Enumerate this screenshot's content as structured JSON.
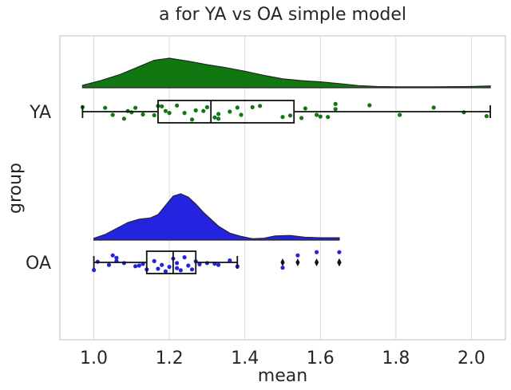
{
  "chart_data": {
    "type": "raincloud",
    "title": "a for YA vs OA simple model",
    "xlabel": "mean",
    "ylabel": "group",
    "xlim": [
      0.91,
      2.09
    ],
    "xticks": [
      1.0,
      1.2,
      1.4,
      1.6,
      1.8,
      2.0
    ],
    "xtick_labels": [
      "1.0",
      "1.2",
      "1.4",
      "1.6",
      "1.8",
      "2.0"
    ],
    "grid": "vertical",
    "groups": [
      {
        "name": "YA",
        "color": "#117711",
        "box": {
          "whisker_low": 0.97,
          "q1": 1.17,
          "median": 1.31,
          "q3": 1.53,
          "whisker_high": 2.05
        },
        "outliers": [],
        "density": {
          "x": [
            0.97,
            1.02,
            1.07,
            1.12,
            1.16,
            1.2,
            1.25,
            1.3,
            1.35,
            1.4,
            1.45,
            1.5,
            1.55,
            1.6,
            1.65,
            1.7,
            1.75,
            1.8,
            1.9,
            2.0,
            2.05
          ],
          "y": [
            0.08,
            0.25,
            0.45,
            0.72,
            0.93,
            1.0,
            0.9,
            0.78,
            0.68,
            0.56,
            0.42,
            0.3,
            0.24,
            0.2,
            0.14,
            0.07,
            0.04,
            0.03,
            0.03,
            0.04,
            0.06
          ]
        },
        "points": [
          {
            "x": 0.97,
            "j": -0.35
          },
          {
            "x": 1.03,
            "j": -0.3
          },
          {
            "x": 1.05,
            "j": 0.25
          },
          {
            "x": 1.08,
            "j": 0.55
          },
          {
            "x": 1.09,
            "j": -0.05
          },
          {
            "x": 1.1,
            "j": 0.05
          },
          {
            "x": 1.11,
            "j": -0.3
          },
          {
            "x": 1.13,
            "j": 0.22
          },
          {
            "x": 1.16,
            "j": 0.28
          },
          {
            "x": 1.17,
            "j": -0.45
          },
          {
            "x": 1.18,
            "j": -0.42
          },
          {
            "x": 1.19,
            "j": -0.05
          },
          {
            "x": 1.22,
            "j": -0.48
          },
          {
            "x": 1.24,
            "j": 0.1
          },
          {
            "x": 1.26,
            "j": 0.62
          },
          {
            "x": 1.27,
            "j": -0.1
          },
          {
            "x": 1.29,
            "j": -0.05
          },
          {
            "x": 1.3,
            "j": -0.35
          },
          {
            "x": 1.32,
            "j": 0.45
          },
          {
            "x": 1.33,
            "j": 0.55
          },
          {
            "x": 1.33,
            "j": 0.18
          },
          {
            "x": 1.36,
            "j": 0.0
          },
          {
            "x": 1.38,
            "j": -0.32
          },
          {
            "x": 1.39,
            "j": 0.25
          },
          {
            "x": 1.42,
            "j": -0.35
          },
          {
            "x": 1.44,
            "j": -0.45
          },
          {
            "x": 1.5,
            "j": 0.42
          },
          {
            "x": 1.52,
            "j": 0.3
          },
          {
            "x": 1.55,
            "j": 0.5
          },
          {
            "x": 1.56,
            "j": -0.25
          },
          {
            "x": 1.59,
            "j": 0.25
          },
          {
            "x": 1.6,
            "j": 0.38
          },
          {
            "x": 1.62,
            "j": 0.42
          },
          {
            "x": 1.64,
            "j": -0.6
          },
          {
            "x": 1.64,
            "j": -0.2
          },
          {
            "x": 1.73,
            "j": -0.5
          },
          {
            "x": 1.81,
            "j": 0.25
          },
          {
            "x": 1.9,
            "j": -0.32
          },
          {
            "x": 1.98,
            "j": 0.05
          },
          {
            "x": 2.04,
            "j": 0.35
          },
          {
            "x": 1.2,
            "j": 0.1
          }
        ]
      },
      {
        "name": "OA",
        "color": "#2323e0",
        "box": {
          "whisker_low": 1.0,
          "q1": 1.14,
          "median": 1.21,
          "q3": 1.27,
          "whisker_high": 1.38
        },
        "outliers": [
          1.5,
          1.54,
          1.59,
          1.65,
          1.65,
          1.65
        ],
        "density": {
          "x": [
            1.0,
            1.03,
            1.06,
            1.09,
            1.12,
            1.15,
            1.17,
            1.19,
            1.21,
            1.23,
            1.25,
            1.27,
            1.29,
            1.31,
            1.33,
            1.36,
            1.39,
            1.42,
            1.45,
            1.48,
            1.52,
            1.56,
            1.6,
            1.65
          ],
          "y": [
            0.04,
            0.12,
            0.25,
            0.38,
            0.45,
            0.48,
            0.55,
            0.75,
            0.95,
            1.0,
            0.93,
            0.78,
            0.6,
            0.45,
            0.3,
            0.15,
            0.08,
            0.03,
            0.04,
            0.09,
            0.1,
            0.06,
            0.05,
            0.05
          ]
        },
        "points": [
          {
            "x": 1.0,
            "j": 0.6
          },
          {
            "x": 1.01,
            "j": -0.05
          },
          {
            "x": 1.04,
            "j": 0.2
          },
          {
            "x": 1.05,
            "j": -0.55
          },
          {
            "x": 1.06,
            "j": -0.35
          },
          {
            "x": 1.06,
            "j": -0.1
          },
          {
            "x": 1.08,
            "j": 0.05
          },
          {
            "x": 1.11,
            "j": 0.3
          },
          {
            "x": 1.12,
            "j": 0.25
          },
          {
            "x": 1.13,
            "j": 0.12
          },
          {
            "x": 1.14,
            "j": 0.55
          },
          {
            "x": 1.16,
            "j": -0.1
          },
          {
            "x": 1.17,
            "j": 0.5
          },
          {
            "x": 1.18,
            "j": 0.2
          },
          {
            "x": 1.19,
            "j": 0.7
          },
          {
            "x": 1.2,
            "j": 0.35
          },
          {
            "x": 1.21,
            "j": -0.3
          },
          {
            "x": 1.22,
            "j": 0.45
          },
          {
            "x": 1.22,
            "j": 0.05
          },
          {
            "x": 1.23,
            "j": 0.62
          },
          {
            "x": 1.24,
            "j": -0.4
          },
          {
            "x": 1.25,
            "j": 0.25
          },
          {
            "x": 1.26,
            "j": 0.55
          },
          {
            "x": 1.27,
            "j": -0.08
          },
          {
            "x": 1.28,
            "j": 0.15
          },
          {
            "x": 1.3,
            "j": 0.05
          },
          {
            "x": 1.32,
            "j": 0.1
          },
          {
            "x": 1.33,
            "j": 0.2
          },
          {
            "x": 1.36,
            "j": -0.15
          },
          {
            "x": 1.38,
            "j": 0.32
          },
          {
            "x": 1.5,
            "j": 0.42
          },
          {
            "x": 1.54,
            "j": -0.55
          },
          {
            "x": 1.59,
            "j": -0.8
          },
          {
            "x": 1.65,
            "j": -0.8
          }
        ]
      }
    ]
  }
}
